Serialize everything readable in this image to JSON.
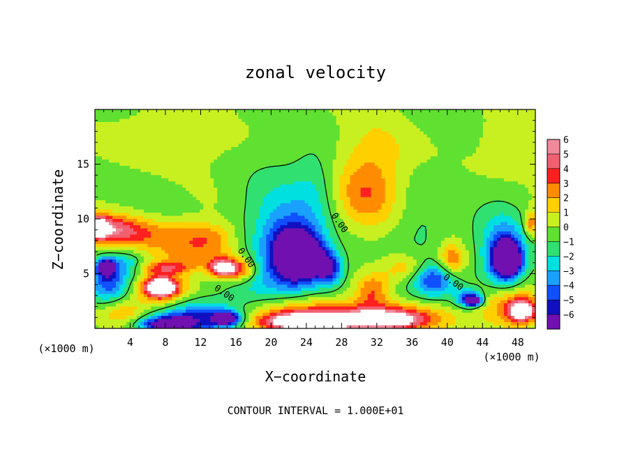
{
  "chart_data": {
    "type": "heatmap",
    "title": "zonal velocity",
    "xlabel": "X−coordinate",
    "ylabel": "Z−coordinate",
    "x_unit_left": "(×1000 m)",
    "x_unit_right": "(×1000 m)",
    "xlim": [
      0,
      50
    ],
    "ylim": [
      0,
      20
    ],
    "x_ticks": [
      {
        "value": 4,
        "label": "4"
      },
      {
        "value": 8,
        "label": "8"
      },
      {
        "value": 12,
        "label": "12"
      },
      {
        "value": 16,
        "label": "16"
      },
      {
        "value": 20,
        "label": "20"
      },
      {
        "value": 24,
        "label": "24"
      },
      {
        "value": 28,
        "label": "28"
      },
      {
        "value": 32,
        "label": "32"
      },
      {
        "value": 36,
        "label": "36"
      },
      {
        "value": 40,
        "label": "40"
      },
      {
        "value": 44,
        "label": "44"
      },
      {
        "value": 48,
        "label": "48"
      }
    ],
    "y_ticks": [
      {
        "value": 5,
        "label": "5"
      },
      {
        "value": 10,
        "label": "10"
      },
      {
        "value": 15,
        "label": "15"
      }
    ],
    "footer": "CONTOUR INTERVAL = 1.000E+01",
    "colorbar": {
      "levels": [
        {
          "label": "6",
          "color": "#f08a9a"
        },
        {
          "label": "5",
          "color": "#f06070"
        },
        {
          "label": "4",
          "color": "#ff2020"
        },
        {
          "label": "3",
          "color": "#ff8c00"
        },
        {
          "label": "2",
          "color": "#ffd000"
        },
        {
          "label": "1",
          "color": "#c8f020"
        },
        {
          "label": "0",
          "color": "#60e030"
        },
        {
          "label": "−1",
          "color": "#30e070"
        },
        {
          "label": "−2",
          "color": "#00e0e0"
        },
        {
          "label": "−3",
          "color": "#1aa0ff"
        },
        {
          "label": "−4",
          "color": "#1050ff"
        },
        {
          "label": "−5",
          "color": "#1010c0"
        },
        {
          "label": "−6",
          "color": "#7010b0"
        }
      ],
      "bottom_color": "#7010b0"
    },
    "contour_labels": [
      {
        "text": "0.00",
        "x": 16.9,
        "z": 6.3
      },
      {
        "text": "0.00",
        "x": 27.5,
        "z": 9.5
      },
      {
        "text": "0.00",
        "x": 14.5,
        "z": 3.0
      },
      {
        "text": "0.00",
        "x": 40.5,
        "z": 4.0
      }
    ],
    "field": {
      "background": 0.8,
      "features": [
        {
          "x": 7.5,
          "z": 17.5,
          "rx": 6,
          "rz": 2.5,
          "v": 1.5
        },
        {
          "x": 22,
          "z": 17.5,
          "rx": 4,
          "rz": 2.5,
          "v": 0.3
        },
        {
          "x": 30.5,
          "z": 12,
          "rx": 3.5,
          "rz": 3,
          "v": 2.8
        },
        {
          "x": 32,
          "z": 16,
          "rx": 4,
          "rz": 3,
          "v": 1.6
        },
        {
          "x": 47,
          "z": 17,
          "rx": 3,
          "rz": 2.5,
          "v": 1.2
        },
        {
          "x": 40,
          "z": 13,
          "rx": 4,
          "rz": 4,
          "v": 0.4
        },
        {
          "x": 20.5,
          "z": 8.5,
          "rx": 4.5,
          "rz": 5.5,
          "v": -2.5
        },
        {
          "x": 22.5,
          "z": 7,
          "rx": 3,
          "rz": 3,
          "v": -4.5
        },
        {
          "x": 23.5,
          "z": 6.5,
          "rx": 2.5,
          "rz": 2,
          "v": -6.8
        },
        {
          "x": 26.5,
          "z": 5.5,
          "rx": 1.6,
          "rz": 1.5,
          "v": -5
        },
        {
          "x": 18,
          "z": 3.5,
          "rx": 4,
          "rz": 2,
          "v": -1.3
        },
        {
          "x": 25,
          "z": 13,
          "rx": 2.5,
          "rz": 4,
          "v": -1.2
        },
        {
          "x": 37,
          "z": 9,
          "rx": 3,
          "rz": 4,
          "v": -1.2
        },
        {
          "x": 35,
          "z": 2.5,
          "rx": 6,
          "rz": 2,
          "v": -0.8
        },
        {
          "x": 2,
          "z": 9,
          "rx": 3.5,
          "rz": 1.4,
          "v": 4.5
        },
        {
          "x": 0.3,
          "z": 9.3,
          "rx": 1.2,
          "rz": 1,
          "v": 5.5
        },
        {
          "x": 8,
          "z": 8.5,
          "rx": 5,
          "rz": 1.5,
          "v": 2.8
        },
        {
          "x": 13,
          "z": 8.3,
          "rx": 3,
          "rz": 1.3,
          "v": 2.3
        },
        {
          "x": 12,
          "z": 6.6,
          "rx": 5,
          "rz": 1.2,
          "v": 2.5
        },
        {
          "x": 16.5,
          "z": 5.3,
          "rx": 1.8,
          "rz": 1,
          "v": 4
        },
        {
          "x": 14.5,
          "z": 5.5,
          "rx": 1.5,
          "rz": 0.8,
          "v": 6.8
        },
        {
          "x": 8,
          "z": 5.5,
          "rx": 3,
          "rz": 0.6,
          "v": 3.5
        },
        {
          "x": 7.5,
          "z": 3.6,
          "rx": 3,
          "rz": 1.4,
          "v": 4.2
        },
        {
          "x": 7.5,
          "z": 3.8,
          "rx": 1.6,
          "rz": 0.8,
          "v": 6.8
        },
        {
          "x": 1.5,
          "z": 4.2,
          "rx": 2.5,
          "rz": 2,
          "v": -4.5
        },
        {
          "x": 1.3,
          "z": 5.6,
          "rx": 0.9,
          "rz": 0.7,
          "v": -6.8
        },
        {
          "x": 3.5,
          "z": 6,
          "rx": 2.5,
          "rz": 1.2,
          "v": -2
        },
        {
          "x": 12,
          "z": 1,
          "rx": 4.5,
          "rz": 1.4,
          "v": -4.5
        },
        {
          "x": 8,
          "z": 0.3,
          "rx": 3,
          "rz": 0.8,
          "v": -6.8
        },
        {
          "x": 15,
          "z": 0.9,
          "rx": 1.5,
          "rz": 0.6,
          "v": -6.8
        },
        {
          "x": 3,
          "z": 1.5,
          "rx": 2.5,
          "rz": 1.2,
          "v": 2
        },
        {
          "x": 24,
          "z": 1.2,
          "rx": 7,
          "rz": 1.6,
          "v": 3.5
        },
        {
          "x": 24,
          "z": 0.6,
          "rx": 5,
          "rz": 0.8,
          "v": 6.8
        },
        {
          "x": 33,
          "z": 0.7,
          "rx": 5,
          "rz": 0.9,
          "v": 6.8
        },
        {
          "x": 33,
          "z": 1.5,
          "rx": 6,
          "rz": 1.2,
          "v": 3
        },
        {
          "x": 31.5,
          "z": 3.5,
          "rx": 2,
          "rz": 1.5,
          "v": 3.5
        },
        {
          "x": 35.5,
          "z": 5.5,
          "rx": 2.5,
          "rz": 1.3,
          "v": 2.5
        },
        {
          "x": 38.5,
          "z": 4.5,
          "rx": 2.5,
          "rz": 1.5,
          "v": -4.5
        },
        {
          "x": 40.5,
          "z": 6.2,
          "rx": 1.5,
          "rz": 1.5,
          "v": 3.5
        },
        {
          "x": 42.5,
          "z": 2.7,
          "rx": 1.5,
          "rz": 0.8,
          "v": -5
        },
        {
          "x": 43,
          "z": 2.5,
          "rx": 0.8,
          "rz": 0.4,
          "v": -6.8
        },
        {
          "x": 47,
          "z": 2,
          "rx": 3.5,
          "rz": 2,
          "v": 3.8
        },
        {
          "x": 48.5,
          "z": 1.6,
          "rx": 1.5,
          "rz": 1,
          "v": 6.8
        },
        {
          "x": 46.5,
          "z": 7,
          "rx": 3,
          "rz": 4,
          "v": -3
        },
        {
          "x": 46.5,
          "z": 6.4,
          "rx": 1.7,
          "rz": 2,
          "v": -5
        },
        {
          "x": 47,
          "z": 6.2,
          "rx": 1.2,
          "rz": 1.2,
          "v": -6.8
        },
        {
          "x": 49.5,
          "z": 9.5,
          "rx": 0.8,
          "rz": 1.2,
          "v": 3.5
        }
      ]
    }
  }
}
